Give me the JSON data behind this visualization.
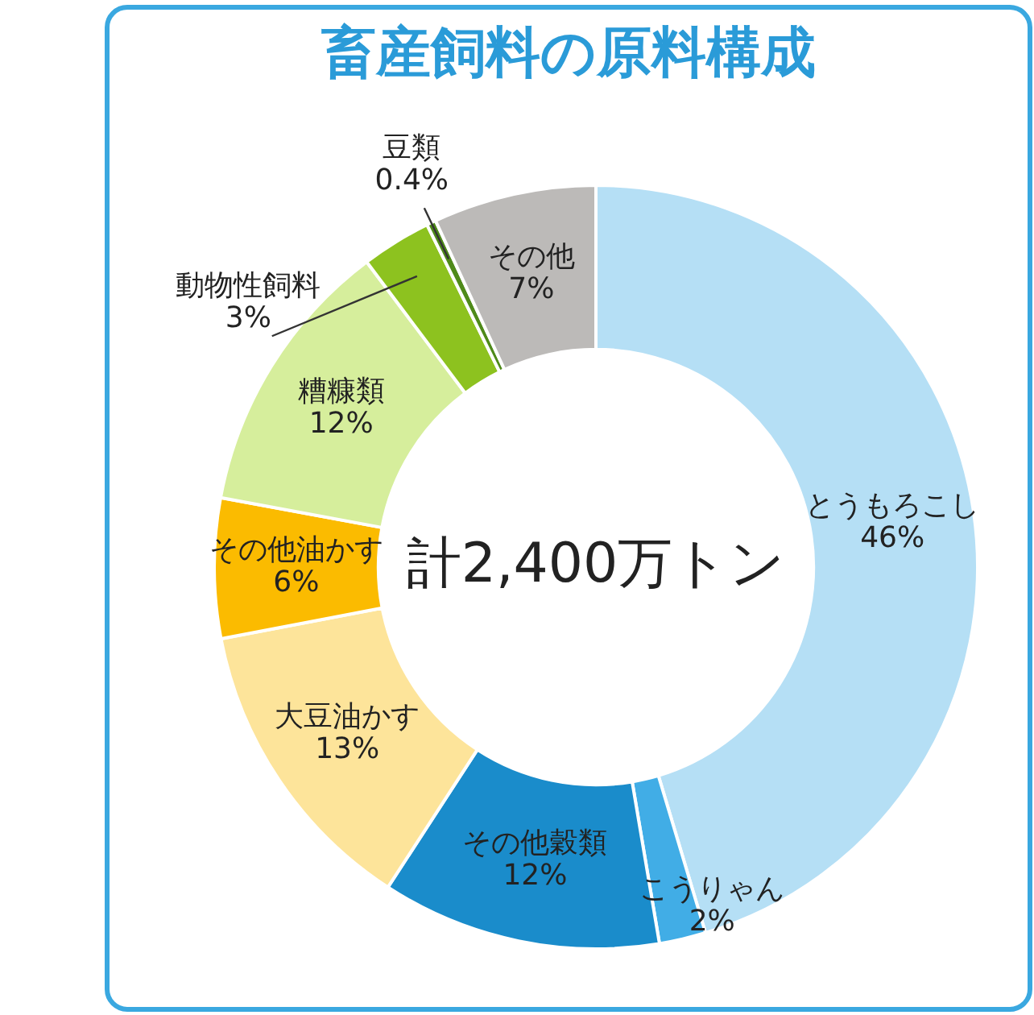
{
  "chart_data": {
    "type": "donut",
    "title": "畜産飼料の原料構成",
    "categories": [
      "とうもろこし",
      "こうりゃん",
      "その他穀類",
      "大豆油かす",
      "その他油かす",
      "糟糠類",
      "動物性飼料",
      "豆類",
      "その他"
    ],
    "values": [
      46,
      2,
      12,
      13,
      6,
      12,
      3,
      0.4,
      7
    ],
    "value_labels": [
      "46%",
      "2%",
      "12%",
      "13%",
      "6%",
      "12%",
      "3%",
      "0.4%",
      "7%"
    ],
    "colors": [
      "#b5dff5",
      "#41ade6",
      "#1a8ccb",
      "#fde49a",
      "#fbbb00",
      "#d6ee9c",
      "#8dc21f",
      "#4f8a1a",
      "#bcbab8"
    ],
    "annotations": [
      "計2,400万トン"
    ],
    "legend": false
  }
}
